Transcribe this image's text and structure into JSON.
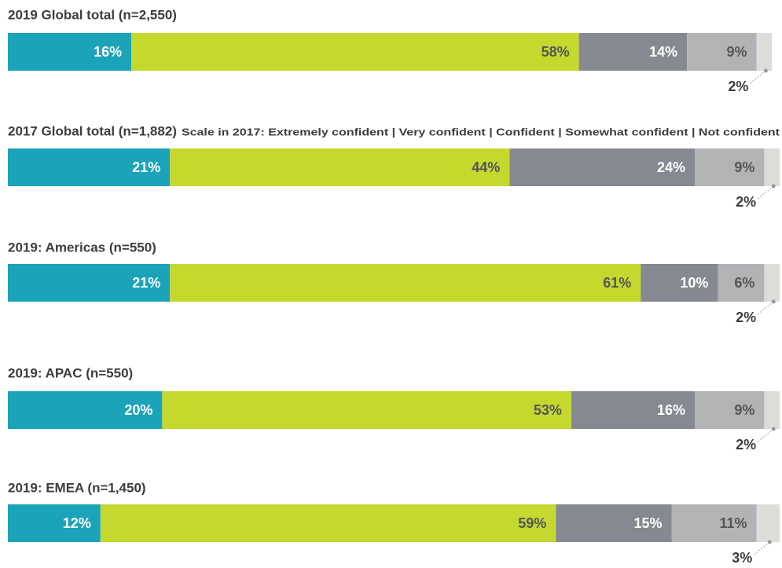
{
  "chart_data": {
    "type": "stacked-bar",
    "categories": [
      "2019 Global total (n=2,550)",
      "2017 Global total (n=1,882)",
      "2019: Americas (n=550)",
      "2019: APAC (n=550)",
      "2019: EMEA (n=1,450)"
    ],
    "note": "Scale in 2017: Extremely confident | Very confident | Confident | Somewhat confident | Not confident",
    "xlim": [
      0,
      100
    ],
    "series": [
      {
        "color": "#1ba3b9",
        "values": [
          16,
          21,
          21,
          20,
          12
        ],
        "value_labels": [
          "16%",
          "21%",
          "21%",
          "20%",
          "12%"
        ]
      },
      {
        "color": "#c5d82e",
        "values": [
          58,
          44,
          61,
          53,
          59
        ],
        "value_labels": [
          "58%",
          "44%",
          "61%",
          "53%",
          "59%"
        ]
      },
      {
        "color": "#868991",
        "values": [
          14,
          24,
          10,
          16,
          15
        ],
        "value_labels": [
          "14%",
          "24%",
          "10%",
          "16%",
          "15%"
        ]
      },
      {
        "color": "#b1b3b5",
        "values": [
          9,
          9,
          6,
          9,
          11
        ],
        "value_labels": [
          "9%",
          "9%",
          "6%",
          "9%",
          "11%"
        ]
      },
      {
        "color": "#dcdcd8",
        "values": [
          2,
          2,
          2,
          2,
          3
        ],
        "value_labels": [
          "2%",
          "2%",
          "2%",
          "2%",
          "3%"
        ]
      }
    ]
  }
}
